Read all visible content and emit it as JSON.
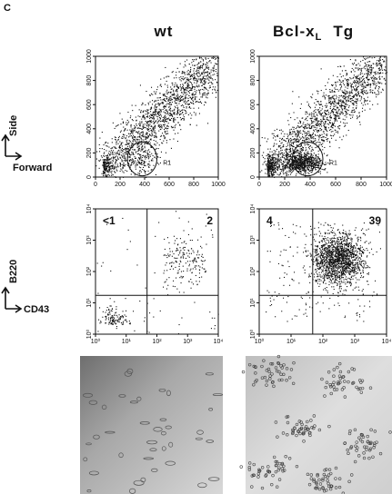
{
  "panel_label": "C",
  "columns": [
    {
      "title": "wt"
    },
    {
      "title": "Bcl-x",
      "title_subscript": "L",
      "title_suffix": "Tg"
    }
  ],
  "axis_labels": {
    "side": "Side",
    "forward": "Forward",
    "b220": "B220",
    "cd43": "CD43"
  },
  "scatter_plots": [
    {
      "gate": "R1",
      "xticks": [
        "0",
        "200",
        "400",
        "600",
        "800",
        "1000"
      ],
      "yticks": [
        "0",
        "200",
        "400",
        "600",
        "800",
        "1000"
      ]
    },
    {
      "gate": "R1",
      "xticks": [
        "0",
        "200",
        "400",
        "600",
        "800",
        "1000"
      ],
      "yticks": [
        "0",
        "200",
        "400",
        "600",
        "800",
        "1000"
      ]
    }
  ],
  "quadrant_plots": [
    {
      "upper_left": "<1",
      "upper_right": "2",
      "xticks": [
        "10⁰",
        "10¹",
        "10²",
        "10³",
        "10⁴"
      ],
      "yticks": [
        "10⁰",
        "10¹",
        "10²",
        "10³",
        "10⁴"
      ]
    },
    {
      "upper_left": "4",
      "upper_right": "39",
      "xticks": [
        "10⁰",
        "10¹",
        "10²",
        "10³",
        "10⁴"
      ],
      "yticks": [
        "10⁰",
        "10¹",
        "10²",
        "10³",
        "10⁴"
      ]
    }
  ]
}
